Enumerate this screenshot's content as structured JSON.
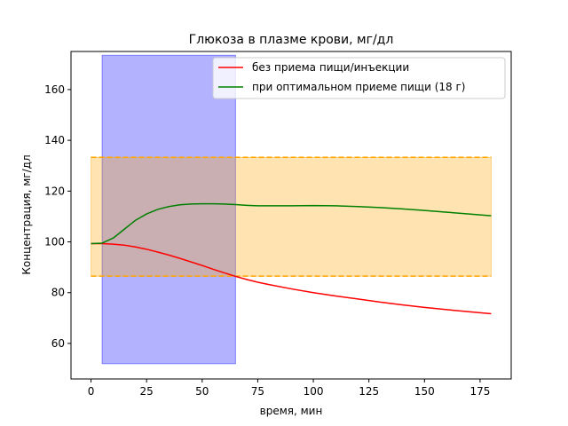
{
  "chart_data": {
    "type": "line",
    "title": "Глюкоза в плазме крови, мг/дл",
    "xlabel": "время, мин",
    "ylabel": "Концентрация, мг/дл",
    "xlim": [
      -9,
      189
    ],
    "ylim": [
      46,
      175
    ],
    "xticks": [
      0,
      25,
      50,
      75,
      100,
      125,
      150,
      175
    ],
    "yticks": [
      60,
      80,
      100,
      120,
      140,
      160
    ],
    "grid": false,
    "legend_position": "top-right",
    "shaded_regions": [
      {
        "x_range": [
          5,
          65
        ],
        "y_range": [
          52,
          173.5
        ],
        "color": "#0000ff",
        "opacity": 0.3
      },
      {
        "x_range": [
          0,
          180
        ],
        "y_range": [
          86.5,
          133.3
        ],
        "color": "#ffa500",
        "opacity": 0.3
      }
    ],
    "reference_lines": [
      {
        "y": 133.3,
        "color": "#ffa500",
        "style": "dashed",
        "x_range": [
          0,
          180
        ]
      },
      {
        "y": 86.5,
        "color": "#ffa500",
        "style": "dashed",
        "x_range": [
          0,
          180
        ]
      }
    ],
    "series": [
      {
        "name": "без приема пищи/инъекции",
        "color": "#ff0000",
        "x": [
          0,
          5,
          10,
          15,
          20,
          25,
          30,
          35,
          40,
          45,
          50,
          55,
          60,
          65,
          70,
          75,
          80,
          90,
          100,
          110,
          120,
          130,
          140,
          150,
          160,
          170,
          180
        ],
        "y": [
          99.3,
          99.3,
          99.1,
          98.7,
          98.0,
          97.1,
          96.0,
          94.8,
          93.5,
          92.1,
          90.7,
          89.2,
          87.8,
          86.4,
          85.2,
          84.1,
          83.2,
          81.5,
          80.0,
          78.7,
          77.5,
          76.3,
          75.2,
          74.2,
          73.3,
          72.5,
          71.7
        ]
      },
      {
        "name": "при оптимальном приеме пищи (18 г)",
        "color": "#008000",
        "x": [
          0,
          5,
          10,
          15,
          20,
          25,
          30,
          35,
          40,
          45,
          50,
          55,
          60,
          65,
          70,
          75,
          80,
          90,
          100,
          110,
          120,
          130,
          140,
          150,
          160,
          170,
          180
        ],
        "y": [
          99.3,
          99.5,
          101.5,
          105.0,
          108.5,
          111.0,
          112.8,
          113.9,
          114.6,
          114.9,
          115.0,
          115.0,
          114.9,
          114.7,
          114.4,
          114.2,
          114.2,
          114.2,
          114.3,
          114.2,
          113.9,
          113.5,
          113.0,
          112.4,
          111.7,
          111.0,
          110.3
        ]
      }
    ]
  }
}
